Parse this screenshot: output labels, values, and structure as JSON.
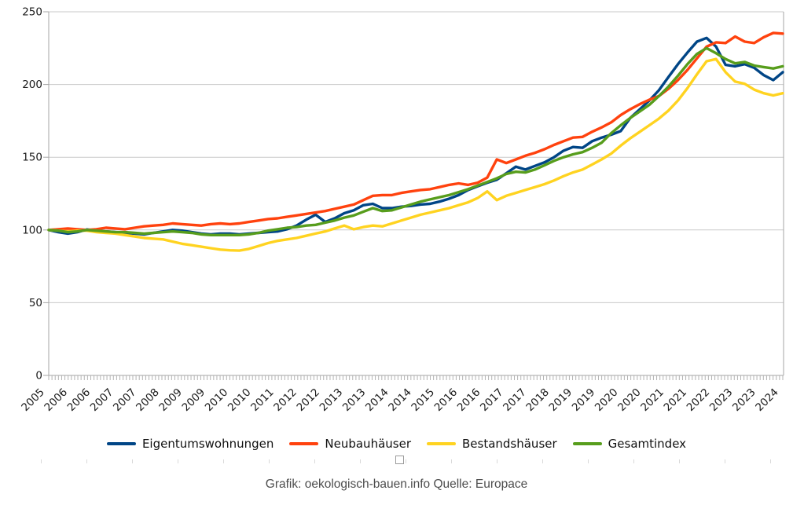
{
  "caption": "Grafik: oekologisch-bauen.info Quelle: Europace",
  "chart_data": {
    "type": "line",
    "title": "",
    "xlabel": "",
    "ylabel": "",
    "ylim": [
      0,
      250
    ],
    "y_ticks": [
      0,
      50,
      100,
      150,
      200,
      250
    ],
    "grid": true,
    "legend_position": "bottom",
    "x_axis_unit": "months (monthly index, labels every 7 months)",
    "x_labels": [
      "2005",
      "2006",
      "2006",
      "2007",
      "2007",
      "2008",
      "2009",
      "2009",
      "2010",
      "2010",
      "2011",
      "2012",
      "2012",
      "2013",
      "2013",
      "2014",
      "2014",
      "2015",
      "2016",
      "2016",
      "2017",
      "2017",
      "2018",
      "2019",
      "2019",
      "2020",
      "2020",
      "2021",
      "2021",
      "2022",
      "2023",
      "2023",
      "2024"
    ],
    "sample_interval": "quarterly",
    "x_range_years": [
      2005.0,
      2024.25
    ],
    "series": [
      {
        "name": "Eigentumswohnungen",
        "color": "#004586",
        "values": [
          100,
          98.5,
          97.5,
          98.5,
          100.3,
          99.5,
          99,
          98.5,
          98,
          97.5,
          97,
          98,
          99,
          100,
          99.5,
          98.5,
          97.5,
          97,
          97.5,
          97.5,
          97,
          97.5,
          98,
          98.5,
          99,
          100.5,
          103,
          107,
          110.5,
          105.5,
          108,
          111.5,
          113.5,
          117,
          118,
          115,
          115,
          116,
          116.5,
          117.5,
          118,
          119.5,
          121.5,
          124,
          127.5,
          130,
          132.5,
          134.5,
          139,
          143.5,
          141.5,
          144,
          146.5,
          150,
          154.5,
          157,
          156.5,
          161,
          163.5,
          165.5,
          168,
          177,
          183,
          189,
          196,
          205,
          214,
          222,
          229.5,
          232,
          226,
          213.5,
          212.5,
          214,
          211.5,
          206.5,
          203,
          208.5
        ]
      },
      {
        "name": "Neubauhäuser",
        "color": "#ff420e",
        "values": [
          100,
          100.5,
          101,
          100.5,
          100,
          100.5,
          101.5,
          101,
          100.5,
          101.5,
          102.5,
          103,
          103.5,
          104.5,
          104,
          103.5,
          103,
          104,
          104.5,
          104,
          104.5,
          105.5,
          106.5,
          107.5,
          108,
          109,
          110,
          111,
          112,
          113,
          114.5,
          116,
          117.5,
          120.5,
          123.5,
          124,
          124,
          125.5,
          126.5,
          127.5,
          128,
          129.5,
          131,
          132,
          131,
          132.5,
          136,
          148.5,
          146,
          148.5,
          151,
          153,
          155.5,
          158.5,
          161,
          163.5,
          164,
          167.5,
          170.5,
          174,
          179,
          183,
          186.5,
          189.5,
          192,
          197,
          203,
          210,
          218,
          226,
          229,
          228.5,
          233,
          229.5,
          228.5,
          232.5,
          235.5,
          235
        ]
      },
      {
        "name": "Bestandshäuser",
        "color": "#ffd320",
        "values": [
          100,
          99.5,
          99,
          99.5,
          99.5,
          98.5,
          98,
          97.5,
          96.5,
          95.5,
          94.5,
          94,
          93.5,
          92,
          90.5,
          89.5,
          88.5,
          87.5,
          86.5,
          86,
          85.8,
          87,
          89,
          91,
          92.5,
          93.5,
          94.5,
          96,
          97.5,
          99,
          101,
          103,
          100.5,
          102,
          103,
          102.5,
          104.5,
          106.5,
          108.5,
          110.5,
          112,
          113.5,
          115,
          117,
          119,
          122,
          126.5,
          120.5,
          123.5,
          125.5,
          127.5,
          129.5,
          131.5,
          134,
          137,
          139.5,
          141.5,
          145,
          148.5,
          152.5,
          158,
          163,
          167.5,
          172,
          176.5,
          182,
          189,
          197.5,
          207,
          216,
          217.5,
          208.5,
          202,
          200.5,
          196.5,
          194,
          192.5,
          194
        ]
      },
      {
        "name": "Gesamtindex",
        "color": "#579d1c",
        "values": [
          100,
          99.5,
          98.5,
          99,
          100,
          99.5,
          99,
          98.5,
          98.5,
          98,
          97.5,
          98,
          98.5,
          99,
          98.5,
          98,
          97,
          96.5,
          96.5,
          96.5,
          96.5,
          97,
          98,
          99.5,
          100.5,
          101.5,
          102,
          103,
          103.5,
          105,
          106.5,
          108.5,
          110,
          112.5,
          115,
          113,
          113.5,
          115.5,
          117.5,
          119.5,
          121,
          122.5,
          124,
          126,
          128,
          130.5,
          133,
          135.5,
          138.5,
          140,
          139.5,
          141.5,
          144.5,
          147.5,
          150,
          152,
          153.5,
          156.5,
          160,
          166.5,
          172,
          177,
          181.5,
          186,
          192,
          198.5,
          206,
          214,
          221,
          225,
          221.5,
          217.5,
          214.5,
          215.5,
          213,
          212,
          211,
          212.5
        ]
      }
    ],
    "axis_colors": {
      "axis_line": "#a6a6a6",
      "gridline": "#c9c9c9",
      "minor_tick": "#b3b3b3",
      "tick_label": "#1a1a1a"
    }
  }
}
